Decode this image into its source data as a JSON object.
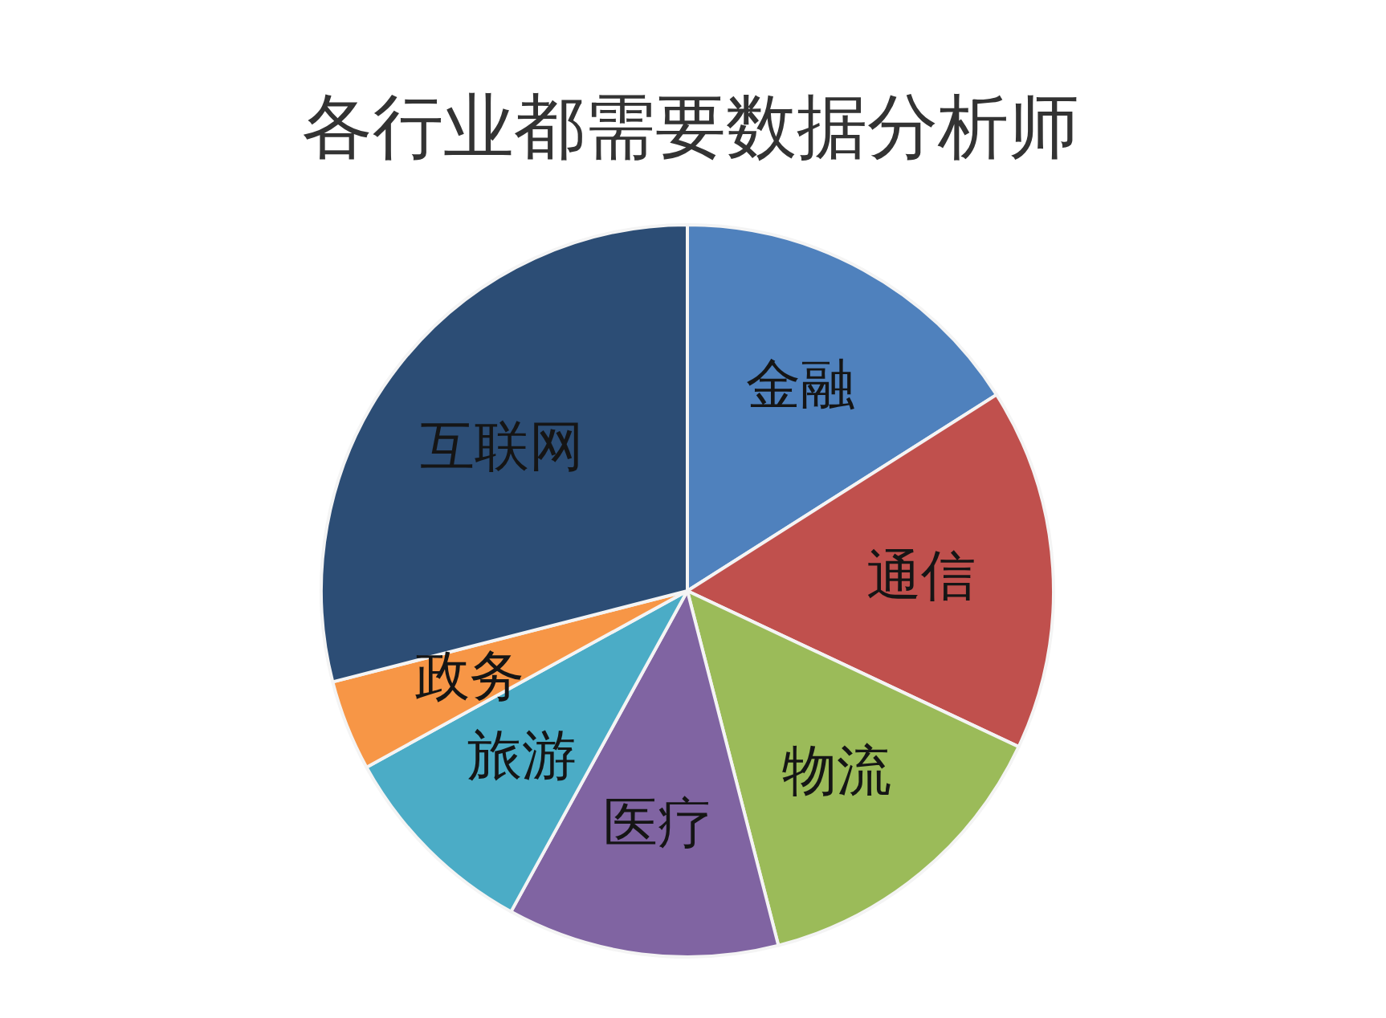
{
  "chart_data": {
    "type": "pie",
    "title": "各行业都需要数据分析师",
    "categories": [
      "金融",
      "通信",
      "物流",
      "医疗",
      "旅游",
      "政务",
      "互联网"
    ],
    "values": [
      16,
      16,
      14,
      12,
      9,
      4,
      29
    ],
    "colors": [
      "#4f81bd",
      "#c0504d",
      "#9bbb59",
      "#8064a2",
      "#4bacc6",
      "#f79646",
      "#2c4d75"
    ]
  }
}
